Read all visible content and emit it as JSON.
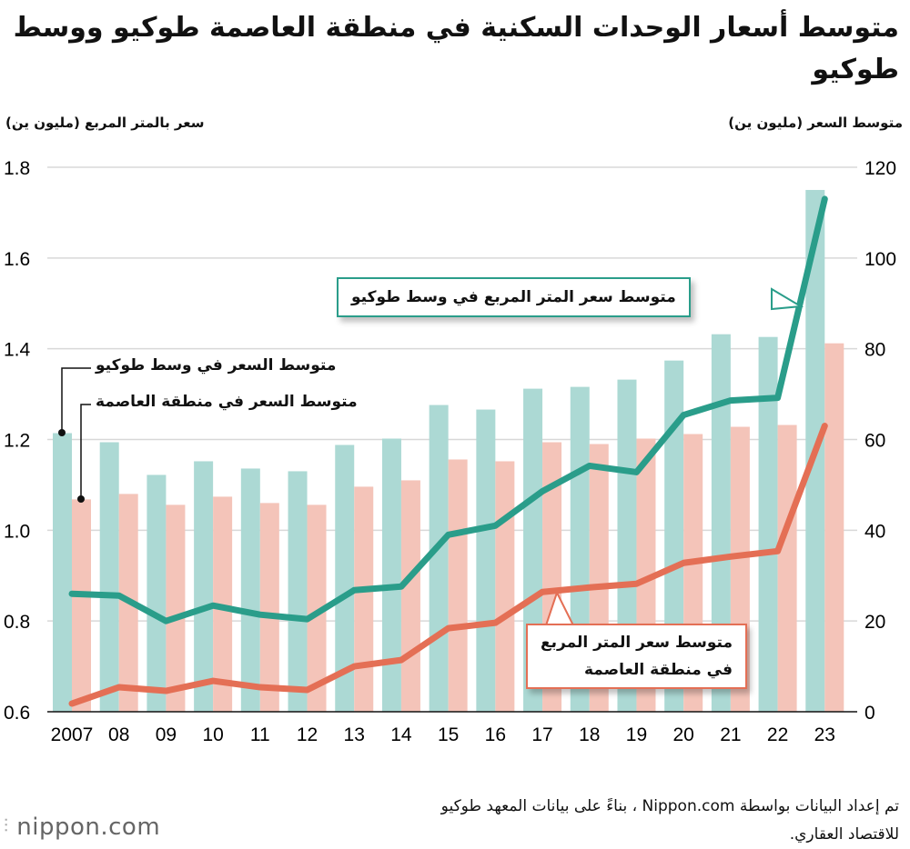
{
  "title": "متوسط أسعار الوحدات السكنية في منطقة العاصمة طوكيو ووسط طوكيو",
  "colors": {
    "teal_bar": "#acd9d4",
    "pink_bar": "#f4c4b9",
    "teal_line": "#2a9d8a",
    "red_line": "#e46f55",
    "grid": "#d8d8d8"
  },
  "chart_data": {
    "type": "bar+line",
    "categories": [
      "2007",
      "08",
      "09",
      "10",
      "11",
      "12",
      "13",
      "14",
      "15",
      "16",
      "17",
      "18",
      "19",
      "20",
      "21",
      "22",
      "23"
    ],
    "left_axis": {
      "label": "سعر بالمتر المربع (مليون ين)",
      "range": [
        0.6,
        1.8
      ],
      "ticks": [
        "0.6",
        "0.8",
        "1.0",
        "1.2",
        "1.4",
        "1.6",
        "1.8"
      ]
    },
    "right_axis": {
      "label": "متوسط السعر (مليون ين)",
      "range": [
        0,
        120
      ],
      "ticks": [
        "0",
        "20",
        "40",
        "60",
        "80",
        "100",
        "120"
      ]
    },
    "grid": true,
    "bars": [
      {
        "name": "متوسط السعر في وسط طوكيو",
        "axis": "right",
        "color": "#acd9d4",
        "values": [
          61.4,
          59.4,
          52.2,
          55.2,
          53.6,
          53.0,
          58.8,
          60.2,
          67.6,
          66.6,
          71.2,
          71.6,
          73.2,
          77.4,
          83.2,
          82.6,
          115.0
        ]
      },
      {
        "name": "متوسط السعر في منطقة العاصمة",
        "axis": "right",
        "color": "#f4c4b9",
        "values": [
          46.8,
          48.0,
          45.6,
          47.4,
          46.0,
          45.6,
          49.6,
          51.0,
          55.6,
          55.2,
          59.4,
          59.0,
          60.2,
          61.2,
          62.8,
          63.2,
          81.2
        ]
      }
    ],
    "lines": [
      {
        "name": "متوسط سعر المتر المربع في وسط طوكيو",
        "axis": "left",
        "color": "#2a9d8a",
        "values": [
          0.86,
          0.856,
          0.8,
          0.834,
          0.814,
          0.804,
          0.868,
          0.876,
          0.99,
          1.01,
          1.086,
          1.142,
          1.128,
          1.254,
          1.286,
          1.292,
          1.73
        ]
      },
      {
        "name": "متوسط سعر المتر المربع في منطقة العاصمة",
        "axis": "left",
        "color": "#e46f55",
        "values": [
          0.618,
          0.654,
          0.646,
          0.668,
          0.654,
          0.648,
          0.7,
          0.714,
          0.784,
          0.796,
          0.864,
          0.874,
          0.882,
          0.928,
          0.942,
          0.954,
          1.23
        ]
      }
    ]
  },
  "annotations": {
    "teal_line": "متوسط سعر المتر المربع في وسط طوكيو",
    "red_line_1": "متوسط سعر المتر المربع",
    "red_line_2": "في منطقة العاصمة",
    "teal_bar": "متوسط السعر في وسط طوكيو",
    "pink_bar": "متوسط السعر في منطقة العاصمة"
  },
  "source": "تم إعداد البيانات بواسطة Nippon.com ، بناءً على بيانات المعهد طوكيو للاقتصاد العقاري.",
  "logo": "nippon.com"
}
